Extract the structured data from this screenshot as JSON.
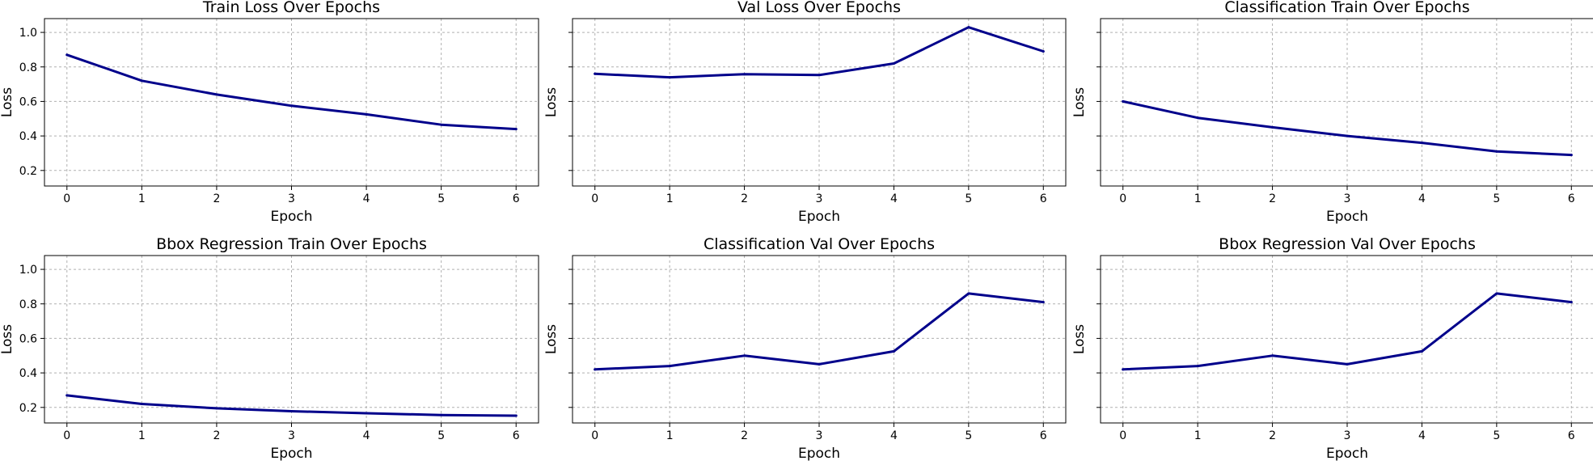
{
  "line_color": "#00008b",
  "grid_color": "#b0b0b0",
  "chart_data": [
    {
      "type": "line",
      "title": "Train Loss Over Epochs",
      "xlabel": "Epoch",
      "ylabel": "Loss",
      "x": [
        0,
        1,
        2,
        3,
        4,
        5,
        6
      ],
      "series": [
        {
          "values": [
            0.87,
            0.72,
            0.64,
            0.575,
            0.525,
            0.465,
            0.44
          ]
        }
      ],
      "xlim": [
        -0.3,
        6.3
      ],
      "ylim": [
        0.11,
        1.08
      ],
      "xticks": [
        "0",
        "1",
        "2",
        "3",
        "4",
        "5",
        "6"
      ],
      "yticks": [
        "0.2",
        "0.4",
        "0.6",
        "0.8",
        "1.0"
      ],
      "show_ytick_labels": true,
      "grid": true
    },
    {
      "type": "line",
      "title": "Val Loss Over Epochs",
      "xlabel": "Epoch",
      "ylabel": "Loss",
      "x": [
        0,
        1,
        2,
        3,
        4,
        5,
        6
      ],
      "series": [
        {
          "values": [
            0.76,
            0.74,
            0.758,
            0.753,
            0.82,
            1.03,
            0.89
          ]
        }
      ],
      "xlim": [
        -0.3,
        6.3
      ],
      "ylim": [
        0.11,
        1.08
      ],
      "xticks": [
        "0",
        "1",
        "2",
        "3",
        "4",
        "5",
        "6"
      ],
      "yticks": [
        "0.2",
        "0.4",
        "0.6",
        "0.8",
        "1.0"
      ],
      "show_ytick_labels": false,
      "grid": true
    },
    {
      "type": "line",
      "title": "Classification Train Over Epochs",
      "xlabel": "Epoch",
      "ylabel": "Loss",
      "x": [
        0,
        1,
        2,
        3,
        4,
        5,
        6
      ],
      "series": [
        {
          "values": [
            0.6,
            0.505,
            0.45,
            0.4,
            0.36,
            0.31,
            0.29
          ]
        }
      ],
      "xlim": [
        -0.3,
        6.3
      ],
      "ylim": [
        0.11,
        1.08
      ],
      "xticks": [
        "0",
        "1",
        "2",
        "3",
        "4",
        "5",
        "6"
      ],
      "yticks": [
        "0.2",
        "0.4",
        "0.6",
        "0.8",
        "1.0"
      ],
      "show_ytick_labels": false,
      "grid": true
    },
    {
      "type": "line",
      "title": "Bbox Regression Train Over Epochs",
      "xlabel": "Epoch",
      "ylabel": "Loss",
      "x": [
        0,
        1,
        2,
        3,
        4,
        5,
        6
      ],
      "series": [
        {
          "values": [
            0.27,
            0.22,
            0.195,
            0.178,
            0.166,
            0.156,
            0.152
          ]
        }
      ],
      "xlim": [
        -0.3,
        6.3
      ],
      "ylim": [
        0.11,
        1.08
      ],
      "xticks": [
        "0",
        "1",
        "2",
        "3",
        "4",
        "5",
        "6"
      ],
      "yticks": [
        "0.2",
        "0.4",
        "0.6",
        "0.8",
        "1.0"
      ],
      "show_ytick_labels": true,
      "grid": true
    },
    {
      "type": "line",
      "title": "Classification Val Over Epochs",
      "xlabel": "Epoch",
      "ylabel": "Loss",
      "x": [
        0,
        1,
        2,
        3,
        4,
        5,
        6
      ],
      "series": [
        {
          "values": [
            0.42,
            0.44,
            0.5,
            0.45,
            0.525,
            0.86,
            0.81
          ]
        }
      ],
      "xlim": [
        -0.3,
        6.3
      ],
      "ylim": [
        0.11,
        1.08
      ],
      "xticks": [
        "0",
        "1",
        "2",
        "3",
        "4",
        "5",
        "6"
      ],
      "yticks": [
        "0.2",
        "0.4",
        "0.6",
        "0.8",
        "1.0"
      ],
      "show_ytick_labels": false,
      "grid": true
    },
    {
      "type": "line",
      "title": "Bbox Regression Val Over Epochs",
      "xlabel": "Epoch",
      "ylabel": "Loss",
      "x": [
        0,
        1,
        2,
        3,
        4,
        5,
        6
      ],
      "series": [
        {
          "values": [
            0.42,
            0.44,
            0.5,
            0.45,
            0.525,
            0.86,
            0.81
          ]
        }
      ],
      "xlim": [
        -0.3,
        6.3
      ],
      "ylim": [
        0.11,
        1.08
      ],
      "xticks": [
        "0",
        "1",
        "2",
        "3",
        "4",
        "5",
        "6"
      ],
      "yticks": [
        "0.2",
        "0.4",
        "0.6",
        "0.8",
        "1.0"
      ],
      "show_ytick_labels": false,
      "grid": true
    }
  ]
}
